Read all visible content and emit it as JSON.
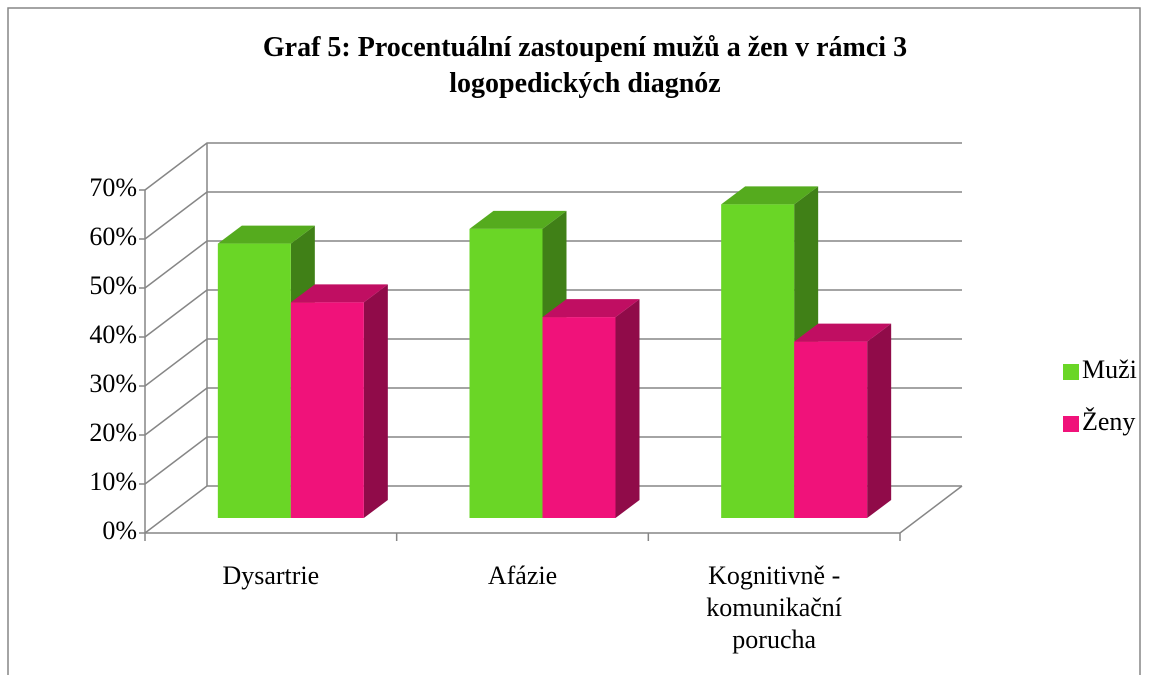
{
  "chart_data": {
    "type": "bar3d",
    "title": "Graf 5: Procentuální zastoupení mužů a žen v rámci 3 logopedických diagnóz",
    "categories": [
      "Dysartrie",
      "Afázie",
      "Kognitivně - komunikační porucha"
    ],
    "series": [
      {
        "name": "Muži",
        "color": "#6ad626",
        "values": [
          56,
          59,
          64
        ]
      },
      {
        "name": "Ženy",
        "color": "#f0127a",
        "values": [
          44,
          41,
          36
        ]
      }
    ],
    "ylim": [
      0,
      70
    ],
    "yticks": [
      {
        "value": 0,
        "label": "0%"
      },
      {
        "value": 10,
        "label": "10%"
      },
      {
        "value": 20,
        "label": "20%"
      },
      {
        "value": 30,
        "label": "30%"
      },
      {
        "value": 40,
        "label": "40%"
      },
      {
        "value": 50,
        "label": "50%"
      },
      {
        "value": 60,
        "label": "60%"
      },
      {
        "value": 70,
        "label": "70%"
      }
    ],
    "grid": true,
    "legend": "right"
  }
}
